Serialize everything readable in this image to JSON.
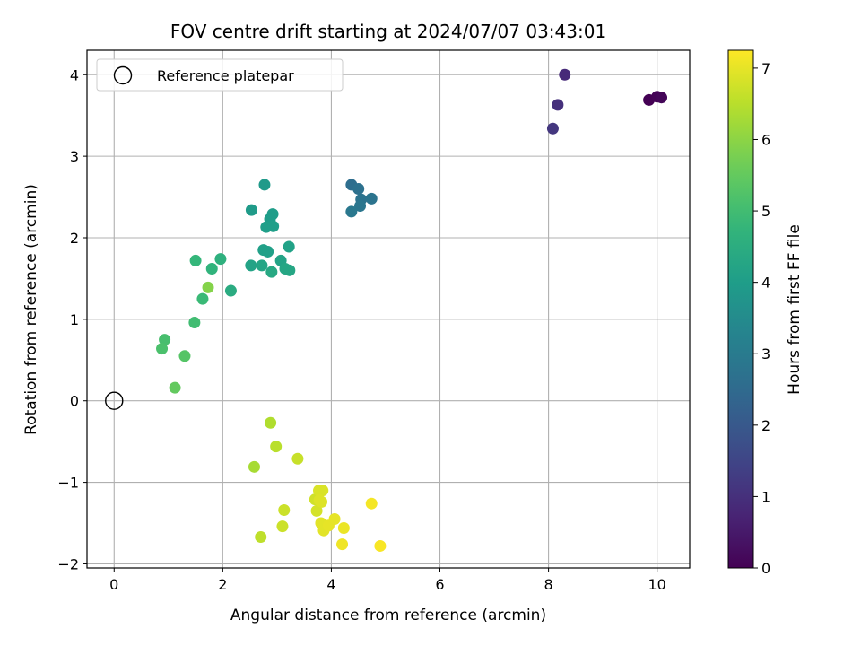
{
  "chart_data": {
    "type": "scatter",
    "title": "FOV centre drift starting at 2024/07/07 03:43:01",
    "xlabel": "Angular distance from reference (arcmin)",
    "ylabel": "Rotation from reference (arcmin)",
    "xlim": [
      -0.5,
      10.6
    ],
    "ylim": [
      -2.05,
      4.3
    ],
    "x_ticks": [
      0,
      2,
      4,
      6,
      8,
      10
    ],
    "x_tick_labels": [
      "0",
      "2",
      "4",
      "6",
      "8",
      "10"
    ],
    "y_ticks": [
      -2,
      -1,
      0,
      1,
      2,
      3,
      4
    ],
    "y_tick_labels": [
      "−2",
      "−1",
      "0",
      "1",
      "2",
      "3",
      "4"
    ],
    "grid": true,
    "legend": {
      "placement": "top-left",
      "entries": [
        "Reference platepar"
      ]
    },
    "reference_point": {
      "x": 0,
      "y": 0,
      "label": "Reference platepar",
      "marker": "open-circle"
    },
    "colorbar": {
      "label": "Hours from first FF file",
      "colormap": "viridis",
      "range": [
        0,
        7.25
      ],
      "ticks": [
        0,
        1,
        2,
        3,
        4,
        5,
        6,
        7
      ],
      "tick_labels": [
        "0",
        "1",
        "2",
        "3",
        "4",
        "5",
        "6",
        "7"
      ]
    },
    "points": [
      {
        "x": 9.85,
        "y": 3.69,
        "c": 0.0
      },
      {
        "x": 10.0,
        "y": 3.73,
        "c": 0.05
      },
      {
        "x": 10.08,
        "y": 3.72,
        "c": 0.1
      },
      {
        "x": 8.3,
        "y": 4.0,
        "c": 0.85
      },
      {
        "x": 8.17,
        "y": 3.63,
        "c": 1.0
      },
      {
        "x": 8.08,
        "y": 3.34,
        "c": 1.15
      },
      {
        "x": 4.37,
        "y": 2.65,
        "c": 2.6
      },
      {
        "x": 4.5,
        "y": 2.6,
        "c": 2.7
      },
      {
        "x": 4.55,
        "y": 2.47,
        "c": 2.75
      },
      {
        "x": 4.74,
        "y": 2.48,
        "c": 2.8
      },
      {
        "x": 4.53,
        "y": 2.39,
        "c": 2.85
      },
      {
        "x": 4.37,
        "y": 2.32,
        "c": 2.9
      },
      {
        "x": 2.77,
        "y": 2.65,
        "c": 3.9
      },
      {
        "x": 2.53,
        "y": 2.34,
        "c": 3.95
      },
      {
        "x": 2.92,
        "y": 2.29,
        "c": 4.0
      },
      {
        "x": 2.87,
        "y": 2.23,
        "c": 4.0
      },
      {
        "x": 2.8,
        "y": 2.13,
        "c": 4.05
      },
      {
        "x": 2.93,
        "y": 2.14,
        "c": 4.05
      },
      {
        "x": 2.75,
        "y": 1.85,
        "c": 4.1
      },
      {
        "x": 2.83,
        "y": 1.83,
        "c": 4.1
      },
      {
        "x": 3.22,
        "y": 1.89,
        "c": 4.15
      },
      {
        "x": 3.07,
        "y": 1.72,
        "c": 4.2
      },
      {
        "x": 2.52,
        "y": 1.66,
        "c": 4.2
      },
      {
        "x": 2.72,
        "y": 1.66,
        "c": 4.25
      },
      {
        "x": 3.15,
        "y": 1.62,
        "c": 4.3
      },
      {
        "x": 3.23,
        "y": 1.6,
        "c": 4.3
      },
      {
        "x": 2.9,
        "y": 1.58,
        "c": 4.35
      },
      {
        "x": 2.15,
        "y": 1.35,
        "c": 4.45
      },
      {
        "x": 1.96,
        "y": 1.74,
        "c": 4.6
      },
      {
        "x": 1.8,
        "y": 1.62,
        "c": 4.7
      },
      {
        "x": 1.5,
        "y": 1.72,
        "c": 4.8
      },
      {
        "x": 1.63,
        "y": 1.25,
        "c": 4.9
      },
      {
        "x": 1.48,
        "y": 0.96,
        "c": 5.0
      },
      {
        "x": 0.93,
        "y": 0.75,
        "c": 5.1
      },
      {
        "x": 0.88,
        "y": 0.64,
        "c": 5.15
      },
      {
        "x": 1.3,
        "y": 0.55,
        "c": 5.3
      },
      {
        "x": 1.12,
        "y": 0.16,
        "c": 5.5
      },
      {
        "x": 1.73,
        "y": 1.39,
        "c": 5.9
      },
      {
        "x": 2.58,
        "y": -0.81,
        "c": 6.3
      },
      {
        "x": 2.88,
        "y": -0.27,
        "c": 6.4
      },
      {
        "x": 2.98,
        "y": -0.56,
        "c": 6.5
      },
      {
        "x": 2.7,
        "y": -1.67,
        "c": 6.55
      },
      {
        "x": 3.38,
        "y": -0.71,
        "c": 6.65
      },
      {
        "x": 3.1,
        "y": -1.54,
        "c": 6.7
      },
      {
        "x": 3.13,
        "y": -1.34,
        "c": 6.7
      },
      {
        "x": 3.7,
        "y": -1.21,
        "c": 6.75
      },
      {
        "x": 3.73,
        "y": -1.35,
        "c": 6.8
      },
      {
        "x": 3.77,
        "y": -1.1,
        "c": 6.85
      },
      {
        "x": 3.84,
        "y": -1.1,
        "c": 6.85
      },
      {
        "x": 3.82,
        "y": -1.24,
        "c": 6.9
      },
      {
        "x": 3.78,
        "y": -1.22,
        "c": 6.9
      },
      {
        "x": 3.81,
        "y": -1.5,
        "c": 6.95
      },
      {
        "x": 3.86,
        "y": -1.59,
        "c": 6.95
      },
      {
        "x": 3.95,
        "y": -1.53,
        "c": 7.0
      },
      {
        "x": 4.06,
        "y": -1.45,
        "c": 7.0
      },
      {
        "x": 4.23,
        "y": -1.56,
        "c": 7.05
      },
      {
        "x": 4.2,
        "y": -1.76,
        "c": 7.1
      },
      {
        "x": 4.74,
        "y": -1.26,
        "c": 7.15
      },
      {
        "x": 4.9,
        "y": -1.78,
        "c": 7.2
      }
    ]
  }
}
